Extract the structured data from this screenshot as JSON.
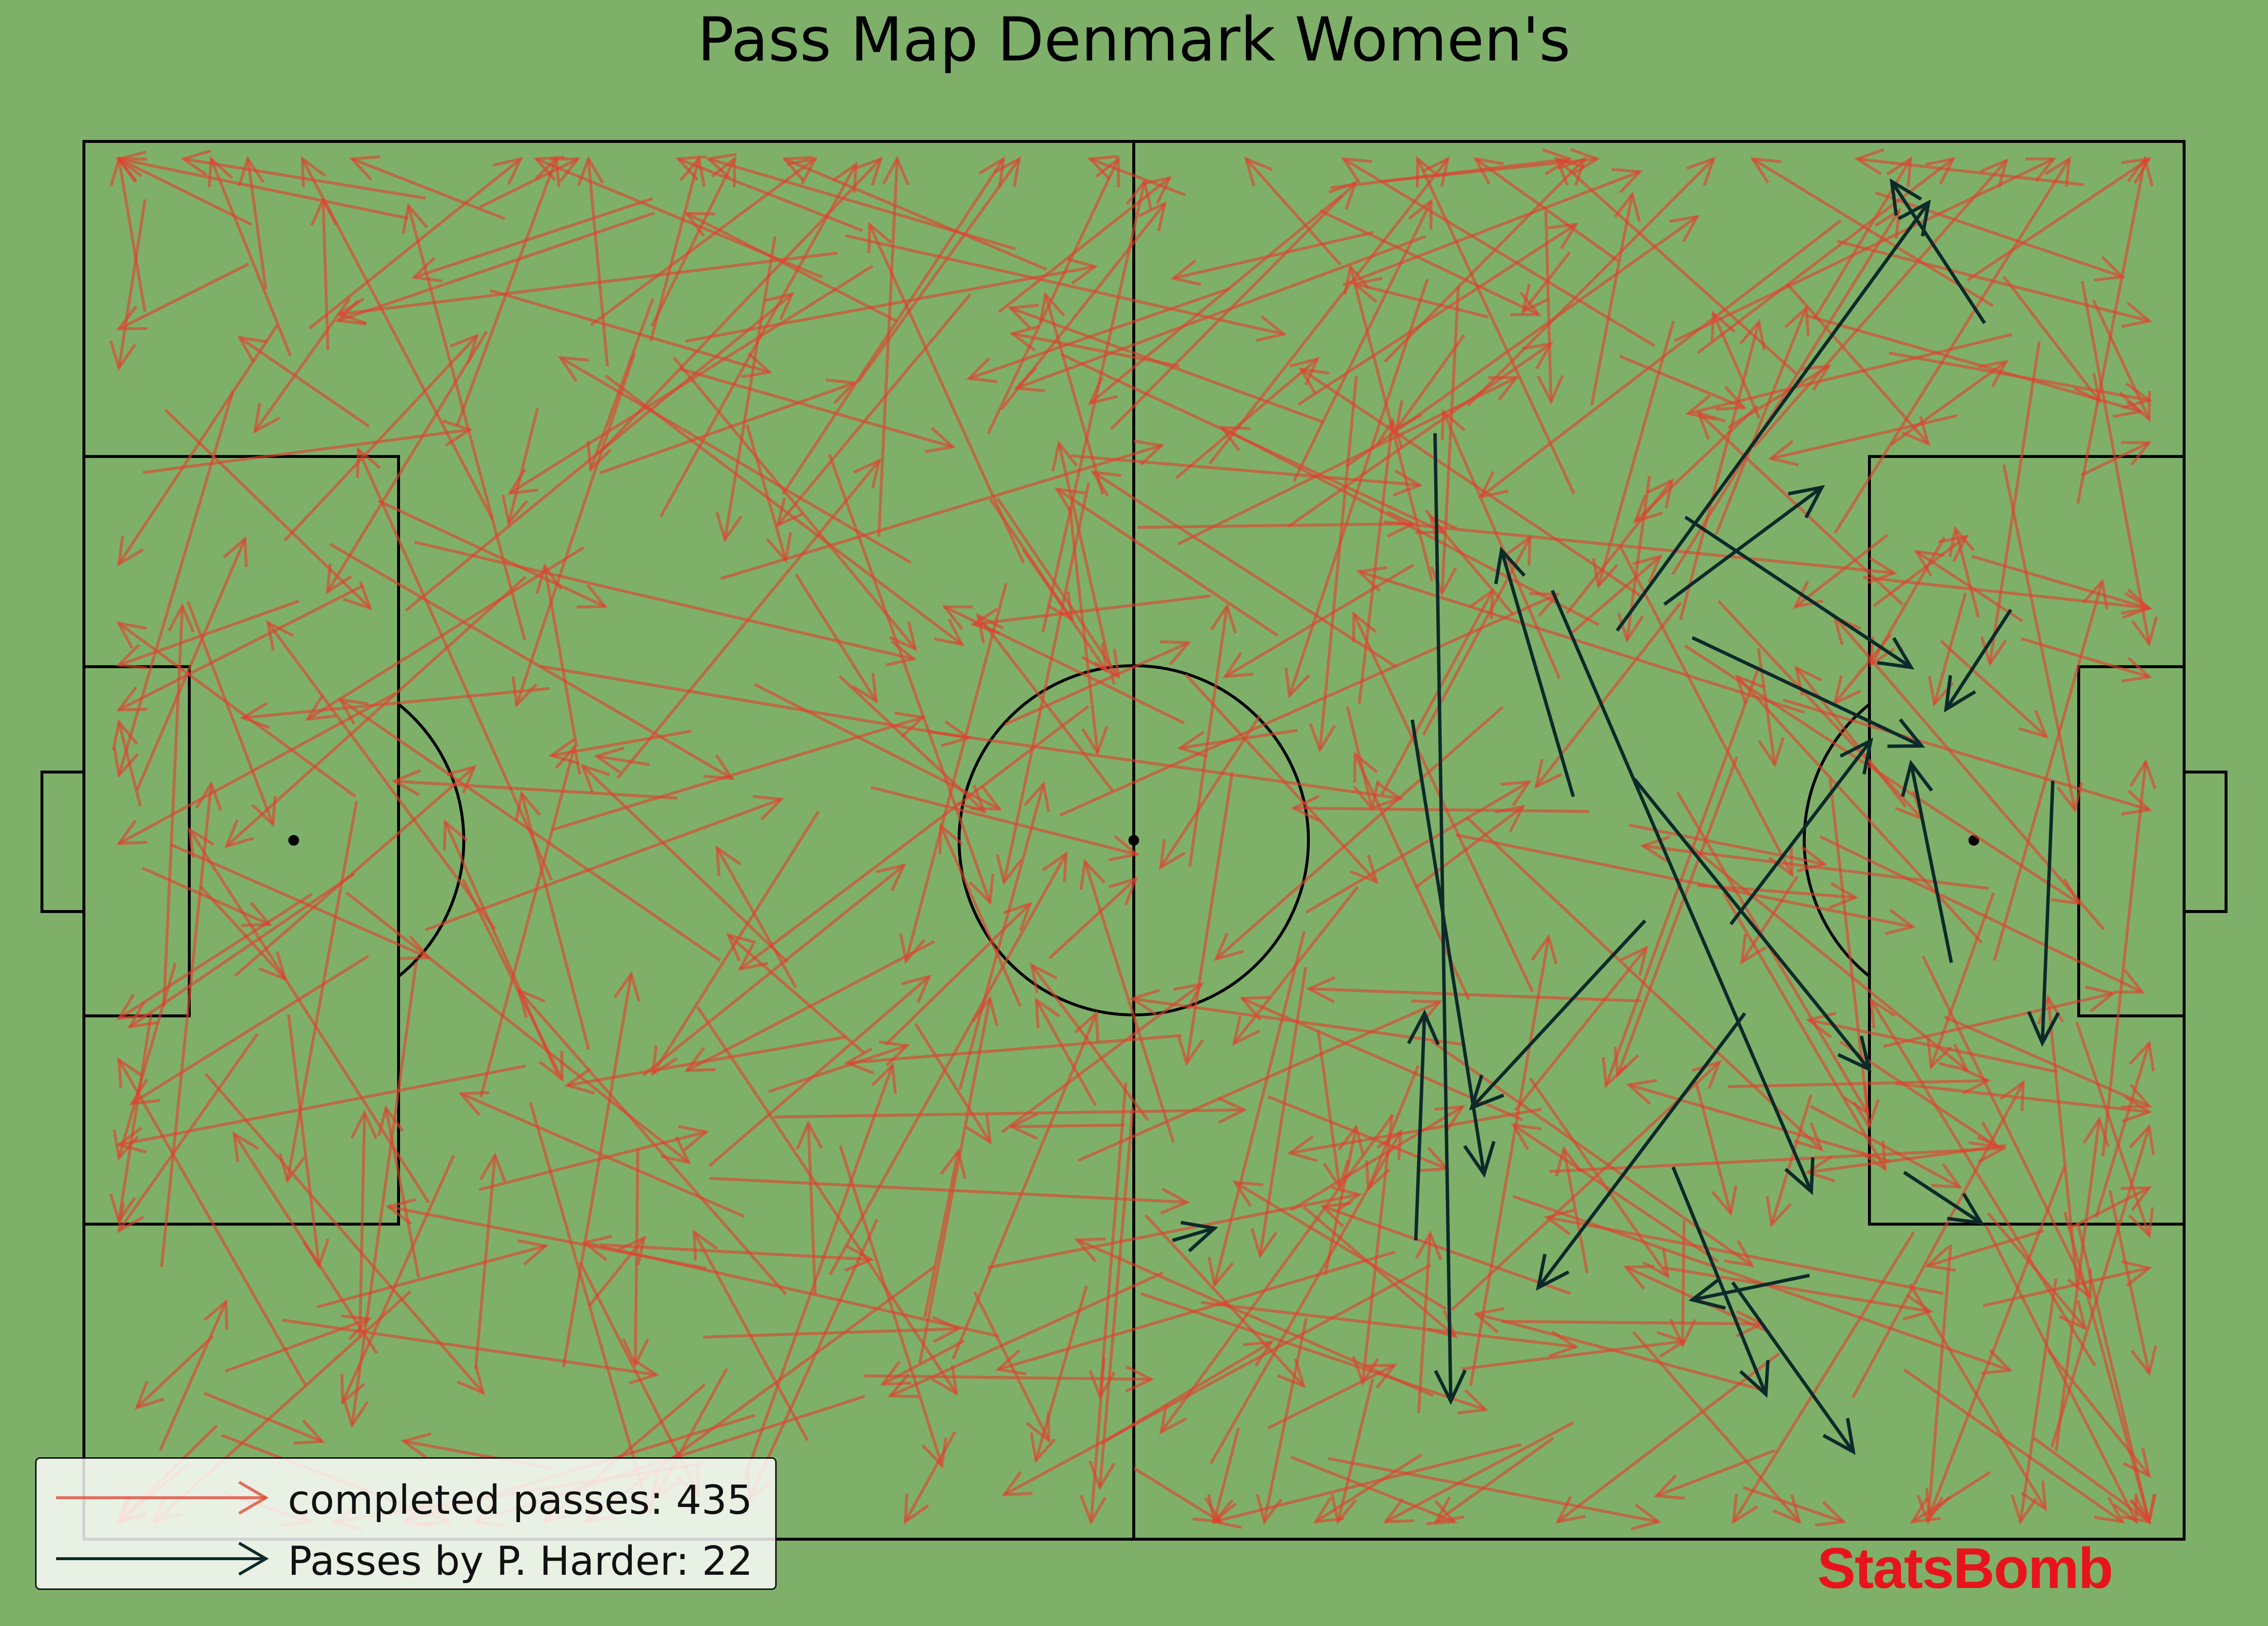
{
  "title": "Pass Map Denmark Women's",
  "brand": "StatsBomb",
  "colors": {
    "background": "#7fb06a",
    "lines": "#000000",
    "completed": "#e0412e",
    "player": "#0c2a2a",
    "brand": "#e8141d"
  },
  "legend": {
    "completed_label": "completed passes: 435",
    "player_label": "Passes by P. Harder: 22"
  },
  "chart_data": {
    "type": "pass_map",
    "pitch": "StatsBomb 120x80",
    "title": "Pass Map Denmark Women's",
    "grid": false,
    "legend_position": "bottom-left",
    "series": [
      {
        "name": "completed passes: 435",
        "count": 435,
        "color": "#e0412e"
      },
      {
        "name": "Passes by P. Harder: 22",
        "count": 22,
        "color": "#0c2a2a"
      }
    ],
    "highlighted_passes": [
      {
        "start": [
          62.2,
          62.9
        ],
        "end": [
          64.6,
          62.2
        ]
      },
      {
        "start": [
          85.1,
          37.5
        ],
        "end": [
          81.0,
          23.4
        ]
      },
      {
        "start": [
          77.2,
          16.7
        ],
        "end": [
          78.1,
          72.1
        ]
      },
      {
        "start": [
          83.9,
          25.7
        ],
        "end": [
          98.7,
          60.1
        ]
      },
      {
        "start": [
          87.6,
          28.0
        ],
        "end": [
          105.4,
          3.5
        ]
      },
      {
        "start": [
          90.3,
          26.5
        ],
        "end": [
          99.3,
          19.8
        ]
      },
      {
        "start": [
          91.5,
          21.5
        ],
        "end": [
          104.4,
          30.1
        ]
      },
      {
        "start": [
          88.6,
          36.5
        ],
        "end": [
          102.0,
          53.1
        ]
      },
      {
        "start": [
          89.2,
          44.6
        ],
        "end": [
          79.3,
          55.3
        ]
      },
      {
        "start": [
          94.9,
          49.9
        ],
        "end": [
          83.1,
          65.6
        ]
      },
      {
        "start": [
          94.2,
          65.3
        ],
        "end": [
          101.1,
          75.0
        ]
      },
      {
        "start": [
          94.1,
          44.8
        ],
        "end": [
          102.1,
          34.3
        ]
      },
      {
        "start": [
          76.1,
          62.9
        ],
        "end": [
          76.6,
          49.9
        ]
      },
      {
        "start": [
          75.9,
          33.1
        ],
        "end": [
          80.0,
          59.1
        ]
      },
      {
        "start": [
          90.8,
          58.7
        ],
        "end": [
          96.1,
          71.7
        ]
      },
      {
        "start": [
          98.6,
          64.9
        ],
        "end": [
          91.9,
          66.3
        ]
      },
      {
        "start": [
          91.9,
          28.4
        ],
        "end": [
          105.0,
          34.6
        ]
      },
      {
        "start": [
          112.5,
          36.6
        ],
        "end": [
          111.9,
          51.6
        ]
      },
      {
        "start": [
          104.0,
          59.0
        ],
        "end": [
          108.4,
          61.9
        ]
      },
      {
        "start": [
          106.7,
          47.0
        ],
        "end": [
          104.4,
          35.6
        ]
      },
      {
        "start": [
          108.6,
          10.4
        ],
        "end": [
          103.3,
          2.3
        ]
      },
      {
        "start": [
          110.1,
          26.8
        ],
        "end": [
          106.4,
          32.5
        ]
      }
    ]
  }
}
